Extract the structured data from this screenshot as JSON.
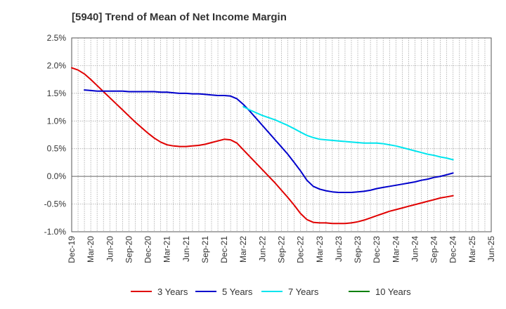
{
  "chart_data": {
    "type": "line",
    "title": "[5940]  Trend of Mean of Net Income Margin",
    "xlabel": "",
    "ylabel": "",
    "x_ticks": [
      "Dec-19",
      "Mar-20",
      "Jun-20",
      "Sep-20",
      "Dec-20",
      "Mar-21",
      "Jun-21",
      "Sep-21",
      "Dec-21",
      "Mar-22",
      "Jun-22",
      "Sep-22",
      "Dec-22",
      "Mar-23",
      "Jun-23",
      "Sep-23",
      "Dec-23",
      "Mar-24",
      "Jun-24",
      "Sep-24",
      "Dec-24",
      "Mar-25",
      "Jun-25"
    ],
    "y_ticks": [
      "2.5%",
      "2.0%",
      "1.5%",
      "1.0%",
      "0.5%",
      "0.0%",
      "-0.5%",
      "-1.0%"
    ],
    "ylim": [
      -1.0,
      2.5
    ],
    "grid": true,
    "legend_position": "bottom",
    "series": [
      {
        "name": "3 Years",
        "color": "#e00000",
        "points": [
          [
            "Dec-19",
            1.96
          ],
          [
            "Jan-20",
            1.92
          ],
          [
            "Feb-20",
            1.85
          ],
          [
            "Mar-20",
            1.75
          ],
          [
            "Apr-20",
            1.64
          ],
          [
            "May-20",
            1.53
          ],
          [
            "Jun-20",
            1.42
          ],
          [
            "Jul-20",
            1.31
          ],
          [
            "Aug-20",
            1.2
          ],
          [
            "Sep-20",
            1.09
          ],
          [
            "Oct-20",
            0.98
          ],
          [
            "Nov-20",
            0.88
          ],
          [
            "Dec-20",
            0.78
          ],
          [
            "Jan-21",
            0.69
          ],
          [
            "Feb-21",
            0.62
          ],
          [
            "Mar-21",
            0.57
          ],
          [
            "Apr-21",
            0.55
          ],
          [
            "May-21",
            0.54
          ],
          [
            "Jun-21",
            0.54
          ],
          [
            "Jul-21",
            0.55
          ],
          [
            "Aug-21",
            0.56
          ],
          [
            "Sep-21",
            0.58
          ],
          [
            "Oct-21",
            0.61
          ],
          [
            "Nov-21",
            0.64
          ],
          [
            "Dec-21",
            0.67
          ],
          [
            "Jan-22",
            0.66
          ],
          [
            "Feb-22",
            0.6
          ],
          [
            "Mar-22",
            0.48
          ],
          [
            "Apr-22",
            0.36
          ],
          [
            "May-22",
            0.24
          ],
          [
            "Jun-22",
            0.12
          ],
          [
            "Jul-22",
            0.0
          ],
          [
            "Aug-22",
            -0.12
          ],
          [
            "Sep-22",
            -0.25
          ],
          [
            "Oct-22",
            -0.38
          ],
          [
            "Nov-22",
            -0.52
          ],
          [
            "Dec-22",
            -0.67
          ],
          [
            "Jan-23",
            -0.78
          ],
          [
            "Feb-23",
            -0.83
          ],
          [
            "Mar-23",
            -0.84
          ],
          [
            "Apr-23",
            -0.84
          ],
          [
            "May-23",
            -0.85
          ],
          [
            "Jun-23",
            -0.85
          ],
          [
            "Jul-23",
            -0.85
          ],
          [
            "Aug-23",
            -0.84
          ],
          [
            "Sep-23",
            -0.82
          ],
          [
            "Oct-23",
            -0.79
          ],
          [
            "Nov-23",
            -0.75
          ],
          [
            "Dec-23",
            -0.71
          ],
          [
            "Jan-24",
            -0.67
          ],
          [
            "Feb-24",
            -0.63
          ],
          [
            "Mar-24",
            -0.6
          ],
          [
            "Apr-24",
            -0.57
          ],
          [
            "May-24",
            -0.54
          ],
          [
            "Jun-24",
            -0.51
          ],
          [
            "Jul-24",
            -0.48
          ],
          [
            "Aug-24",
            -0.45
          ],
          [
            "Sep-24",
            -0.42
          ],
          [
            "Oct-24",
            -0.39
          ],
          [
            "Nov-24",
            -0.37
          ],
          [
            "Dec-24",
            -0.35
          ]
        ]
      },
      {
        "name": "5 Years",
        "color": "#0000cc",
        "points": [
          [
            "Feb-20",
            1.56
          ],
          [
            "Mar-20",
            1.55
          ],
          [
            "Apr-20",
            1.54
          ],
          [
            "May-20",
            1.54
          ],
          [
            "Jun-20",
            1.54
          ],
          [
            "Jul-20",
            1.54
          ],
          [
            "Aug-20",
            1.54
          ],
          [
            "Sep-20",
            1.53
          ],
          [
            "Oct-20",
            1.53
          ],
          [
            "Nov-20",
            1.53
          ],
          [
            "Dec-20",
            1.53
          ],
          [
            "Jan-21",
            1.53
          ],
          [
            "Feb-21",
            1.52
          ],
          [
            "Mar-21",
            1.52
          ],
          [
            "Apr-21",
            1.51
          ],
          [
            "May-21",
            1.5
          ],
          [
            "Jun-21",
            1.5
          ],
          [
            "Jul-21",
            1.49
          ],
          [
            "Aug-21",
            1.49
          ],
          [
            "Sep-21",
            1.48
          ],
          [
            "Oct-21",
            1.47
          ],
          [
            "Nov-21",
            1.46
          ],
          [
            "Dec-21",
            1.46
          ],
          [
            "Jan-22",
            1.45
          ],
          [
            "Feb-22",
            1.4
          ],
          [
            "Mar-22",
            1.3
          ],
          [
            "Apr-22",
            1.18
          ],
          [
            "May-22",
            1.05
          ],
          [
            "Jun-22",
            0.92
          ],
          [
            "Jul-22",
            0.79
          ],
          [
            "Aug-22",
            0.66
          ],
          [
            "Sep-22",
            0.53
          ],
          [
            "Oct-22",
            0.4
          ],
          [
            "Nov-22",
            0.25
          ],
          [
            "Dec-22",
            0.1
          ],
          [
            "Jan-23",
            -0.07
          ],
          [
            "Feb-23",
            -0.18
          ],
          [
            "Mar-23",
            -0.23
          ],
          [
            "Apr-23",
            -0.26
          ],
          [
            "May-23",
            -0.28
          ],
          [
            "Jun-23",
            -0.29
          ],
          [
            "Jul-23",
            -0.29
          ],
          [
            "Aug-23",
            -0.29
          ],
          [
            "Sep-23",
            -0.28
          ],
          [
            "Oct-23",
            -0.27
          ],
          [
            "Nov-23",
            -0.25
          ],
          [
            "Dec-23",
            -0.22
          ],
          [
            "Jan-24",
            -0.2
          ],
          [
            "Feb-24",
            -0.18
          ],
          [
            "Mar-24",
            -0.16
          ],
          [
            "Apr-24",
            -0.14
          ],
          [
            "May-24",
            -0.12
          ],
          [
            "Jun-24",
            -0.1
          ],
          [
            "Jul-24",
            -0.07
          ],
          [
            "Aug-24",
            -0.05
          ],
          [
            "Sep-24",
            -0.02
          ],
          [
            "Oct-24",
            0.0
          ],
          [
            "Nov-24",
            0.03
          ],
          [
            "Dec-24",
            0.06
          ]
        ]
      },
      {
        "name": "7 Years",
        "color": "#00e5ee",
        "points": [
          [
            "Mar-22",
            1.26
          ],
          [
            "Apr-22",
            1.2
          ],
          [
            "May-22",
            1.15
          ],
          [
            "Jun-22",
            1.1
          ],
          [
            "Jul-22",
            1.06
          ],
          [
            "Aug-22",
            1.02
          ],
          [
            "Sep-22",
            0.97
          ],
          [
            "Oct-22",
            0.92
          ],
          [
            "Nov-22",
            0.86
          ],
          [
            "Dec-22",
            0.8
          ],
          [
            "Jan-23",
            0.74
          ],
          [
            "Feb-23",
            0.7
          ],
          [
            "Mar-23",
            0.67
          ],
          [
            "Apr-23",
            0.66
          ],
          [
            "May-23",
            0.65
          ],
          [
            "Jun-23",
            0.64
          ],
          [
            "Jul-23",
            0.63
          ],
          [
            "Aug-23",
            0.62
          ],
          [
            "Sep-23",
            0.61
          ],
          [
            "Oct-23",
            0.6
          ],
          [
            "Nov-23",
            0.6
          ],
          [
            "Dec-23",
            0.6
          ],
          [
            "Jan-24",
            0.59
          ],
          [
            "Feb-24",
            0.57
          ],
          [
            "Mar-24",
            0.55
          ],
          [
            "Apr-24",
            0.52
          ],
          [
            "May-24",
            0.49
          ],
          [
            "Jun-24",
            0.46
          ],
          [
            "Jul-24",
            0.43
          ],
          [
            "Aug-24",
            0.4
          ],
          [
            "Sep-24",
            0.38
          ],
          [
            "Oct-24",
            0.35
          ],
          [
            "Nov-24",
            0.33
          ],
          [
            "Dec-24",
            0.3
          ]
        ]
      },
      {
        "name": "10 Years",
        "color": "#008000",
        "points": []
      }
    ]
  }
}
